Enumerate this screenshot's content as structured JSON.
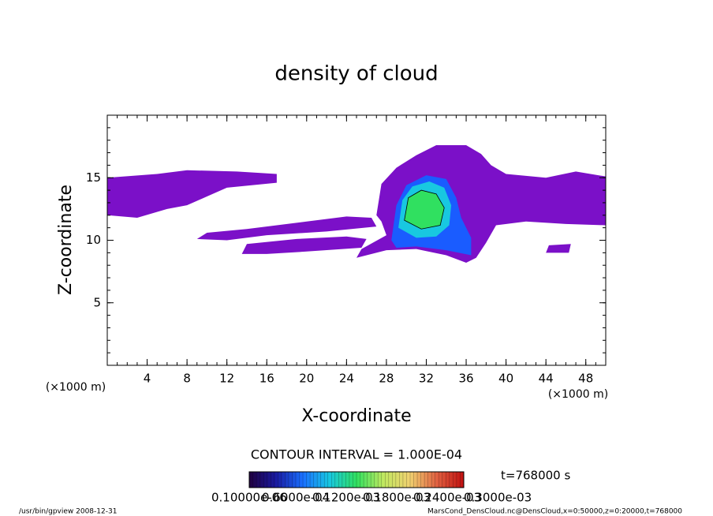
{
  "chart_data": {
    "type": "contour",
    "title": "density of cloud",
    "x_label": "X-coordinate",
    "y_label": "Z-coordinate",
    "x_unit": "(×1000 m)",
    "y_unit": "(×1000 m)",
    "xlim": [
      0,
      50
    ],
    "ylim": [
      0,
      20
    ],
    "xticks": [
      4,
      8,
      12,
      16,
      20,
      24,
      28,
      32,
      36,
      40,
      44,
      48
    ],
    "yticks": [
      5,
      10,
      15
    ],
    "regions": [
      {
        "level": 1e-05,
        "color": "#7b10c8",
        "points": [
          [
            0,
            12
          ],
          [
            0,
            15
          ],
          [
            5,
            15.3
          ],
          [
            8,
            15.6
          ],
          [
            13,
            15.5
          ],
          [
            17,
            15.3
          ],
          [
            17,
            14.6
          ],
          [
            12,
            14.2
          ],
          [
            10,
            13.5
          ],
          [
            8,
            12.8
          ],
          [
            6,
            12.5
          ],
          [
            3,
            11.8
          ]
        ]
      },
      {
        "level": 1e-05,
        "color": "#7b10c8",
        "points": [
          [
            9,
            10.1
          ],
          [
            10,
            10.6
          ],
          [
            14,
            10.9
          ],
          [
            20,
            11.5
          ],
          [
            24,
            11.9
          ],
          [
            26.5,
            11.8
          ],
          [
            27,
            11.1
          ],
          [
            22,
            10.7
          ],
          [
            16,
            10.4
          ],
          [
            12,
            10
          ]
        ]
      },
      {
        "level": 1e-05,
        "color": "#7b10c8",
        "points": [
          [
            13.5,
            8.9
          ],
          [
            14,
            9.7
          ],
          [
            19,
            10.1
          ],
          [
            24,
            10.3
          ],
          [
            26,
            10.1
          ],
          [
            25.5,
            9.4
          ],
          [
            20,
            9.1
          ],
          [
            16,
            8.9
          ]
        ]
      },
      {
        "level": 1e-05,
        "color": "#7b10c8",
        "points": [
          [
            27,
            12
          ],
          [
            27.5,
            14.5
          ],
          [
            29,
            15.8
          ],
          [
            31,
            16.8
          ],
          [
            33,
            17.6
          ],
          [
            36,
            17.6
          ],
          [
            37.5,
            16.9
          ],
          [
            38.5,
            16
          ],
          [
            40,
            15.3
          ],
          [
            44,
            15
          ],
          [
            47,
            15.5
          ],
          [
            50,
            15.1
          ],
          [
            50,
            11.2
          ],
          [
            46,
            11.3
          ],
          [
            42,
            11.5
          ],
          [
            39,
            11.2
          ],
          [
            38,
            9.8
          ],
          [
            37,
            8.6
          ],
          [
            36,
            8.2
          ],
          [
            34,
            8.8
          ],
          [
            31,
            9.3
          ],
          [
            28,
            9.2
          ],
          [
            25,
            8.6
          ],
          [
            25.5,
            9.3
          ],
          [
            28,
            10.4
          ],
          [
            27.5,
            11.5
          ]
        ]
      },
      {
        "level": 1e-05,
        "color": "#7b10c8",
        "points": [
          [
            44,
            9
          ],
          [
            44.3,
            9.6
          ],
          [
            46.5,
            9.7
          ],
          [
            46.3,
            9
          ]
        ]
      },
      {
        "level": 5e-05,
        "color": "#1a5cff",
        "points": [
          [
            28.5,
            10
          ],
          [
            29,
            12.8
          ],
          [
            30,
            14.4
          ],
          [
            32,
            15.2
          ],
          [
            34,
            14.9
          ],
          [
            35,
            13.4
          ],
          [
            35.5,
            11.8
          ],
          [
            36.5,
            10.2
          ],
          [
            36.5,
            8.8
          ],
          [
            34,
            9.2
          ],
          [
            31,
            9.5
          ],
          [
            29,
            9.4
          ]
        ]
      },
      {
        "level": 9e-05,
        "color": "#18c8e0",
        "points": [
          [
            29.2,
            11
          ],
          [
            29.6,
            13.2
          ],
          [
            30.6,
            14.3
          ],
          [
            32.3,
            14.7
          ],
          [
            33.8,
            14.2
          ],
          [
            34.5,
            12.8
          ],
          [
            34.3,
            11.2
          ],
          [
            33,
            10.3
          ],
          [
            31,
            10.2
          ]
        ]
      },
      {
        "level": 0.00012,
        "color": "#30e060",
        "points": [
          [
            29.8,
            11.6
          ],
          [
            30.2,
            13.4
          ],
          [
            31.5,
            14
          ],
          [
            33,
            13.7
          ],
          [
            33.8,
            12.6
          ],
          [
            33.4,
            11.2
          ],
          [
            31.5,
            10.9
          ]
        ]
      }
    ],
    "colorbar_colors": [
      "#200040",
      "#1a1aa0",
      "#1a70ff",
      "#18c8e0",
      "#30e060",
      "#c0e860",
      "#f0d070",
      "#e06040",
      "#c01010"
    ],
    "colorbar_labels": [
      "0.10000e-06",
      "0.6000e-04",
      "0.1200e-03",
      "0.1800e-03",
      "0.2400e-03",
      "0.3000e-03"
    ],
    "contour_interval": "CONTOUR INTERVAL = 1.000E-04",
    "time": "t=768000 s",
    "footer_left": "/usr/bin/gpview  2008-12-31",
    "footer_right": "MarsCond_DensCloud.nc@DensCloud,x=0:50000,z=0:20000,t=768000"
  }
}
